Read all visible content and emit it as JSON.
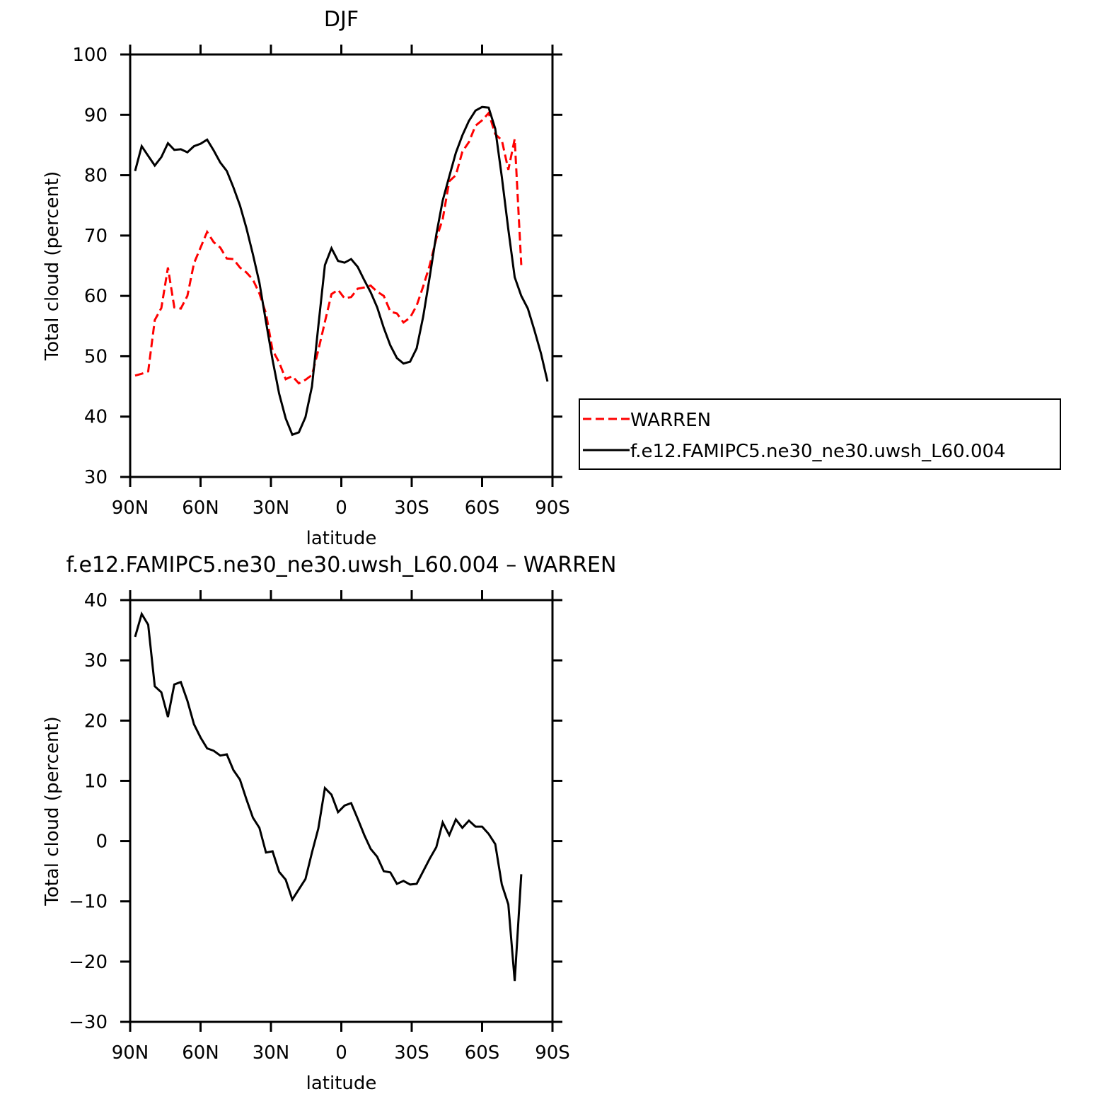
{
  "chart_data": [
    {
      "type": "line",
      "title": "DJF",
      "xlabel": "latitude",
      "ylabel": "Total cloud (percent)",
      "x": [
        87.9,
        85.1,
        82.3,
        79.5,
        76.7,
        73.9,
        71.2,
        68.4,
        65.6,
        62.8,
        60.0,
        57.2,
        54.4,
        51.6,
        48.8,
        46.0,
        43.2,
        40.5,
        37.7,
        34.9,
        32.1,
        29.3,
        26.5,
        23.7,
        20.9,
        18.1,
        15.3,
        12.5,
        9.8,
        7.0,
        4.2,
        1.4,
        -1.4,
        -4.2,
        -7.0,
        -9.8,
        -12.5,
        -15.3,
        -18.1,
        -20.9,
        -23.7,
        -26.5,
        -29.3,
        -32.1,
        -34.9,
        -37.7,
        -40.5,
        -43.2,
        -46.0,
        -48.8,
        -51.6,
        -54.4,
        -57.2,
        -60.0,
        -62.8,
        -65.6,
        -68.4,
        -71.2,
        -73.9,
        -76.7,
        -79.5,
        -82.3,
        -85.1,
        -87.9
      ],
      "xlim": [
        90,
        -90
      ],
      "xticks": [
        {
          "value": 90,
          "label": "90N"
        },
        {
          "value": 60,
          "label": "60N"
        },
        {
          "value": 30,
          "label": "30N"
        },
        0,
        {
          "value": -30,
          "label": "30S"
        },
        {
          "value": -60,
          "label": "60S"
        },
        {
          "value": -90,
          "label": "90S"
        }
      ],
      "ylim": [
        30,
        100
      ],
      "yticks": [
        30,
        40,
        50,
        60,
        70,
        80,
        90,
        100
      ],
      "legend": "outside-right",
      "series": [
        {
          "name": "WARREN",
          "color": "#ff0000",
          "line_style": "dashed",
          "values": [
            46.8,
            47.1,
            47.5,
            56.0,
            58.0,
            64.7,
            58.1,
            57.9,
            60.0,
            65.4,
            68.0,
            70.6,
            68.9,
            68.0,
            66.2,
            66.1,
            64.7,
            63.9,
            62.7,
            60.4,
            57.1,
            51.0,
            49.0,
            46.2,
            46.7,
            45.5,
            46.1,
            46.9,
            51.0,
            55.7,
            60.3,
            61.0,
            59.6,
            59.8,
            61.2,
            61.4,
            61.7,
            60.7,
            60.0,
            57.4,
            57.1,
            55.6,
            56.4,
            58.4,
            61.6,
            65.1,
            69.5,
            72.7,
            79.0,
            80.0,
            83.9,
            85.5,
            88.2,
            89.1,
            90.3,
            86.8,
            85.8,
            80.9,
            86.0,
            65.1,
            null,
            null,
            null,
            null
          ]
        },
        {
          "name": "f.e12.FAMIPC5.ne30_ne30.uwsh_L60.004",
          "color": "#000000",
          "line_style": "solid",
          "values": [
            80.7,
            84.8,
            83.2,
            81.6,
            83.0,
            85.3,
            84.2,
            84.3,
            83.8,
            84.8,
            85.2,
            85.9,
            84.1,
            82.1,
            80.7,
            78.0,
            75.0,
            71.3,
            66.9,
            62.2,
            55.7,
            49.4,
            43.8,
            39.7,
            37.0,
            37.4,
            39.9,
            45.0,
            55.0,
            65.1,
            67.9,
            65.8,
            65.5,
            66.1,
            64.8,
            62.6,
            60.6,
            58.1,
            54.7,
            51.8,
            49.7,
            48.8,
            49.1,
            51.3,
            56.6,
            63.2,
            70.2,
            75.8,
            79.8,
            83.7,
            86.6,
            89.0,
            90.7,
            91.3,
            91.2,
            87.7,
            79.7,
            71.0,
            63.1,
            60.0,
            57.9,
            54.3,
            50.5,
            45.8
          ]
        }
      ]
    },
    {
      "type": "line",
      "title": "f.e12.FAMIPC5.ne30_ne30.uwsh_L60.004 – WARREN",
      "xlabel": "latitude",
      "ylabel": "Total cloud (percent)",
      "x": [
        87.9,
        85.1,
        82.3,
        79.5,
        76.7,
        73.9,
        71.2,
        68.4,
        65.6,
        62.8,
        60.0,
        57.2,
        54.4,
        51.6,
        48.8,
        46.0,
        43.2,
        40.5,
        37.7,
        34.9,
        32.1,
        29.3,
        26.5,
        23.7,
        20.9,
        18.1,
        15.3,
        12.5,
        9.8,
        7.0,
        4.2,
        1.4,
        -1.4,
        -4.2,
        -7.0,
        -9.8,
        -12.5,
        -15.3,
        -18.1,
        -20.9,
        -23.7,
        -26.5,
        -29.3,
        -32.1,
        -34.9,
        -37.7,
        -40.5,
        -43.2,
        -46.0,
        -48.8,
        -51.6,
        -54.4,
        -57.2,
        -60.0,
        -62.8,
        -65.6,
        -68.4,
        -71.2,
        -73.9,
        -76.7,
        -79.5,
        -82.3,
        -85.1,
        -87.9
      ],
      "xlim": [
        90,
        -90
      ],
      "xticks": [
        {
          "value": 90,
          "label": "90N"
        },
        {
          "value": 60,
          "label": "60N"
        },
        {
          "value": 30,
          "label": "30N"
        },
        0,
        {
          "value": -30,
          "label": "30S"
        },
        {
          "value": -60,
          "label": "60S"
        },
        {
          "value": -90,
          "label": "90S"
        }
      ],
      "ylim": [
        -30,
        40
      ],
      "yticks": [
        {
          "value": -30,
          "label": "−30"
        },
        {
          "value": -20,
          "label": "−20"
        },
        {
          "value": -10,
          "label": "−10"
        },
        0,
        10,
        20,
        30,
        40
      ],
      "series": [
        {
          "color": "#000000",
          "line_style": "solid",
          "values": [
            33.9,
            37.7,
            35.9,
            25.7,
            24.7,
            20.6,
            26.0,
            26.4,
            23.3,
            19.4,
            17.2,
            15.4,
            15.0,
            14.2,
            14.4,
            11.8,
            10.2,
            7.0,
            3.9,
            2.2,
            -1.9,
            -1.7,
            -5.1,
            -6.4,
            -9.7,
            -8.0,
            -6.3,
            -1.9,
            2.1,
            8.8,
            7.7,
            4.8,
            5.9,
            6.3,
            3.7,
            1.0,
            -1.3,
            -2.6,
            -5.0,
            -5.2,
            -7.1,
            -6.6,
            -7.2,
            -7.1,
            -5.0,
            -2.9,
            -1.0,
            3.1,
            1.0,
            3.6,
            2.2,
            3.4,
            2.4,
            2.4,
            1.2,
            -0.5,
            -7.2,
            -10.5,
            -23.2,
            -5.5,
            null,
            null,
            null,
            null
          ]
        }
      ]
    }
  ]
}
